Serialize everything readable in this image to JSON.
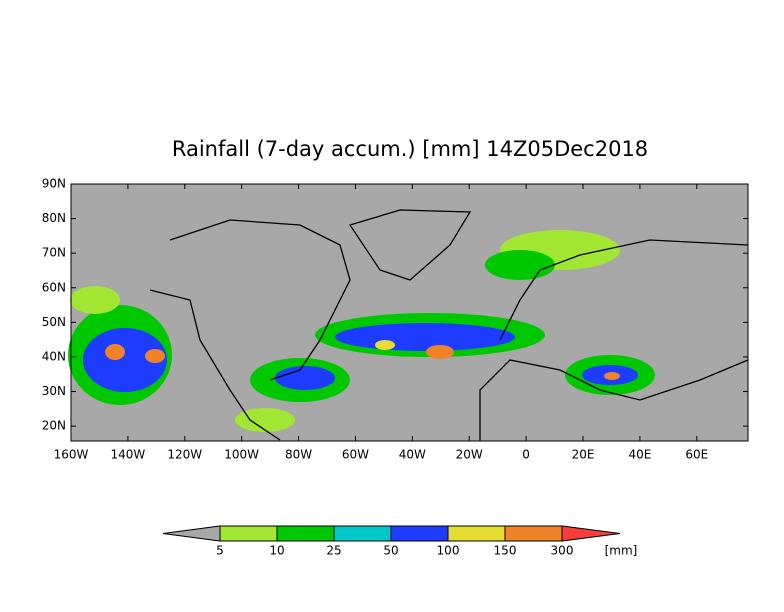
{
  "title": "Rainfall (7-day accum.) [mm] 14Z05Dec2018",
  "map": {
    "lon_range": [
      -160,
      78
    ],
    "lat_range": [
      15.7,
      90
    ],
    "lat_ticks": [
      {
        "value": 90,
        "label": "90N"
      },
      {
        "value": 80,
        "label": "80N"
      },
      {
        "value": 70,
        "label": "70N"
      },
      {
        "value": 60,
        "label": "60N"
      },
      {
        "value": 50,
        "label": "50N"
      },
      {
        "value": 40,
        "label": "40N"
      },
      {
        "value": 30,
        "label": "30N"
      },
      {
        "value": 20,
        "label": "20N"
      }
    ],
    "lon_ticks": [
      {
        "value": -160,
        "label": "160W"
      },
      {
        "value": -140,
        "label": "140W"
      },
      {
        "value": -120,
        "label": "120W"
      },
      {
        "value": -100,
        "label": "100W"
      },
      {
        "value": -80,
        "label": "80W"
      },
      {
        "value": -60,
        "label": "60W"
      },
      {
        "value": -40,
        "label": "40W"
      },
      {
        "value": -20,
        "label": "20W"
      },
      0,
      {
        "value": 20,
        "label": "20E"
      },
      {
        "value": 40,
        "label": "40E"
      },
      {
        "value": 60,
        "label": "60E"
      }
    ]
  },
  "colorbar": {
    "levels": [
      5,
      10,
      25,
      50,
      100,
      150,
      300
    ],
    "colors": [
      "#a8a8a8",
      "#a0e632",
      "#00c800",
      "#00c8c8",
      "#1e3cff",
      "#e6dc32",
      "#f08228",
      "#fa3c3c"
    ],
    "unit": "[mm]"
  }
}
